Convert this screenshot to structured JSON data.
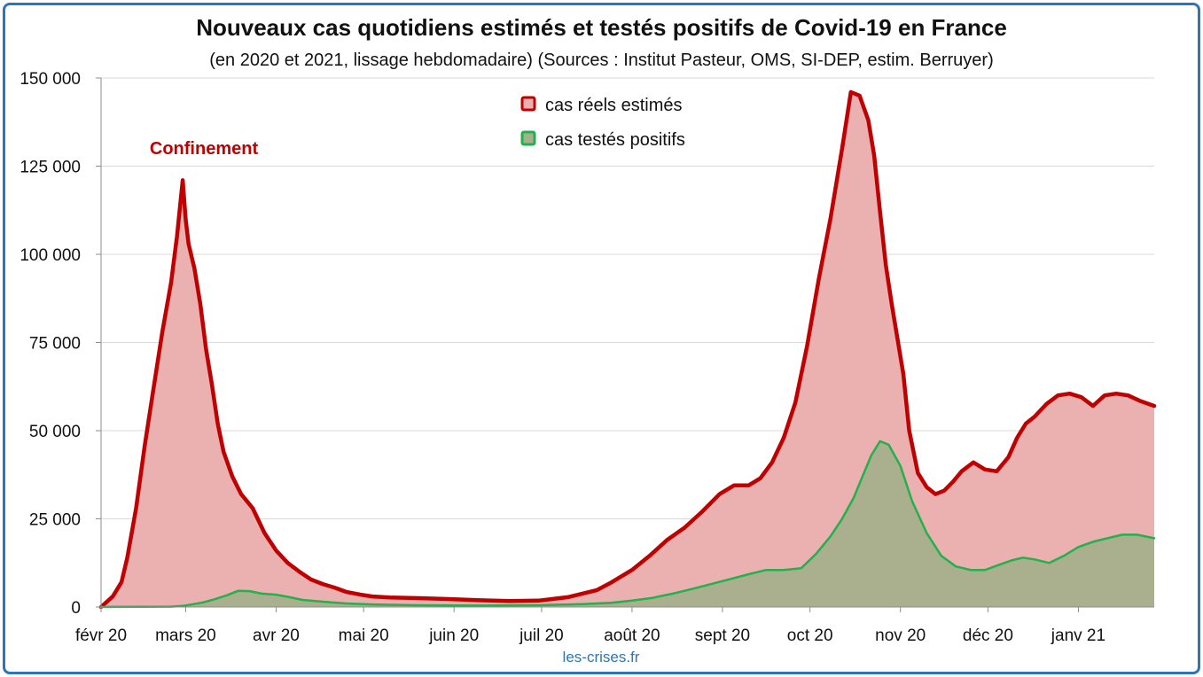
{
  "chart_data": {
    "type": "area",
    "title": "Nouveaux cas quotidiens estimés et testés positifs de Covid-19 en France",
    "subtitle": "(en 2020 et 2021, lissage hebdomadaire) (Sources : Institut Pasteur, OMS, SI-DEP, estim. Berruyer)",
    "ylim": [
      0,
      150000
    ],
    "yticks": [
      0,
      25000,
      50000,
      75000,
      100000,
      125000,
      150000
    ],
    "ytick_labels": [
      "0",
      "25 000",
      "50 000",
      "75 000",
      "100 000",
      "125 000",
      "150 000"
    ],
    "xlim": [
      "2020-02-01",
      "2021-01-27"
    ],
    "xtick_dates": [
      "2020-02-01",
      "2020-03-01",
      "2020-04-01",
      "2020-05-01",
      "2020-06-01",
      "2020-07-01",
      "2020-08-01",
      "2020-09-01",
      "2020-10-01",
      "2020-11-01",
      "2020-12-01",
      "2021-01-01"
    ],
    "xtick_labels": [
      "févr 20",
      "mars 20",
      "avr 20",
      "mai 20",
      "juin 20",
      "juil 20",
      "août 20",
      "sept 20",
      "oct 20",
      "nov 20",
      "déc 20",
      "janv 21"
    ],
    "grid": true,
    "legend_position": "top-center",
    "annotation": "Confinement",
    "credit": "les-crises.fr",
    "series": [
      {
        "name": "cas réels estimés",
        "color": "#c00000",
        "fill": "#ebb0b0",
        "x": [
          "2020-02-01",
          "2020-02-05",
          "2020-02-08",
          "2020-02-10",
          "2020-02-13",
          "2020-02-16",
          "2020-02-19",
          "2020-02-22",
          "2020-02-25",
          "2020-02-27",
          "2020-02-29",
          "2020-03-01",
          "2020-03-02",
          "2020-03-04",
          "2020-03-06",
          "2020-03-08",
          "2020-03-10",
          "2020-03-12",
          "2020-03-14",
          "2020-03-17",
          "2020-03-20",
          "2020-03-24",
          "2020-03-28",
          "2020-04-01",
          "2020-04-05",
          "2020-04-09",
          "2020-04-13",
          "2020-04-17",
          "2020-04-21",
          "2020-04-25",
          "2020-04-30",
          "2020-05-04",
          "2020-05-10",
          "2020-05-20",
          "2020-06-01",
          "2020-06-10",
          "2020-06-20",
          "2020-06-30",
          "2020-07-10",
          "2020-07-20",
          "2020-07-25",
          "2020-08-01",
          "2020-08-07",
          "2020-08-13",
          "2020-08-19",
          "2020-08-25",
          "2020-08-31",
          "2020-09-05",
          "2020-09-10",
          "2020-09-14",
          "2020-09-18",
          "2020-09-22",
          "2020-09-26",
          "2020-09-30",
          "2020-10-04",
          "2020-10-08",
          "2020-10-12",
          "2020-10-15",
          "2020-10-18",
          "2020-10-21",
          "2020-10-23",
          "2020-10-25",
          "2020-10-27",
          "2020-10-29",
          "2020-10-31",
          "2020-11-02",
          "2020-11-04",
          "2020-11-07",
          "2020-11-10",
          "2020-11-13",
          "2020-11-16",
          "2020-11-19",
          "2020-11-22",
          "2020-11-26",
          "2020-11-30",
          "2020-12-04",
          "2020-12-08",
          "2020-12-11",
          "2020-12-14",
          "2020-12-17",
          "2020-12-21",
          "2020-12-25",
          "2020-12-29",
          "2021-01-02",
          "2021-01-06",
          "2021-01-10",
          "2021-01-14",
          "2021-01-18",
          "2021-01-22",
          "2021-01-27"
        ],
        "values": [
          0,
          3000,
          7000,
          14000,
          28000,
          46000,
          62000,
          78000,
          92000,
          105000,
          121000,
          110000,
          103000,
          96000,
          86000,
          73000,
          63000,
          52000,
          44000,
          37000,
          32000,
          28000,
          21000,
          16000,
          12500,
          10000,
          7800,
          6500,
          5500,
          4300,
          3500,
          3000,
          2700,
          2500,
          2200,
          1900,
          1700,
          1800,
          2800,
          4800,
          7000,
          10500,
          14500,
          19000,
          22500,
          27000,
          32000,
          34500,
          34500,
          36500,
          41000,
          48000,
          58000,
          74000,
          93000,
          110000,
          130000,
          146000,
          145000,
          138000,
          128000,
          112000,
          97000,
          86000,
          76000,
          66000,
          50000,
          38000,
          34000,
          32000,
          33000,
          35500,
          38500,
          41000,
          39000,
          38500,
          42500,
          48000,
          52000,
          54000,
          57500,
          60000,
          60500,
          59500,
          57000,
          60000,
          60500,
          60000,
          58500,
          57000
        ]
      },
      {
        "name": "cas testés positifs",
        "color": "#22b14c",
        "fill": "#a6b08c",
        "x": [
          "2020-02-01",
          "2020-02-25",
          "2020-02-29",
          "2020-03-03",
          "2020-03-07",
          "2020-03-11",
          "2020-03-15",
          "2020-03-19",
          "2020-03-23",
          "2020-03-27",
          "2020-04-01",
          "2020-04-05",
          "2020-04-10",
          "2020-04-17",
          "2020-04-25",
          "2020-05-05",
          "2020-05-20",
          "2020-06-10",
          "2020-06-30",
          "2020-07-15",
          "2020-07-25",
          "2020-08-01",
          "2020-08-08",
          "2020-08-15",
          "2020-08-22",
          "2020-08-29",
          "2020-09-04",
          "2020-09-10",
          "2020-09-16",
          "2020-09-22",
          "2020-09-28",
          "2020-10-03",
          "2020-10-08",
          "2020-10-12",
          "2020-10-16",
          "2020-10-19",
          "2020-10-22",
          "2020-10-25",
          "2020-10-28",
          "2020-11-01",
          "2020-11-05",
          "2020-11-10",
          "2020-11-15",
          "2020-11-20",
          "2020-11-25",
          "2020-11-30",
          "2020-12-05",
          "2020-12-09",
          "2020-12-13",
          "2020-12-17",
          "2020-12-22",
          "2020-12-27",
          "2021-01-01",
          "2021-01-06",
          "2021-01-11",
          "2021-01-16",
          "2021-01-21",
          "2021-01-27"
        ],
        "values": [
          0,
          100,
          300,
          700,
          1300,
          2200,
          3300,
          4600,
          4500,
          3800,
          3500,
          2900,
          2000,
          1500,
          1000,
          700,
          500,
          400,
          500,
          800,
          1200,
          1800,
          2600,
          3800,
          5200,
          6700,
          8000,
          9300,
          10500,
          10500,
          11000,
          15000,
          20000,
          25000,
          31000,
          37000,
          43000,
          47000,
          46000,
          40000,
          30000,
          21000,
          14500,
          11500,
          10500,
          10500,
          12000,
          13200,
          14000,
          13500,
          12500,
          14500,
          17000,
          18500,
          19500,
          20500,
          20500,
          19500
        ]
      }
    ]
  }
}
